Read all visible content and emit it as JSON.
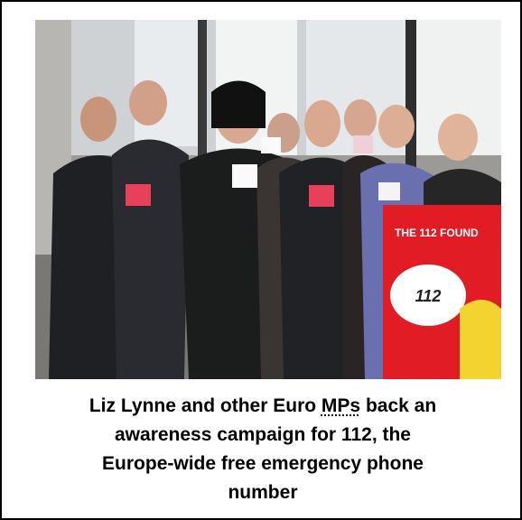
{
  "photo": {
    "sign_title": "THE 112 FOUND",
    "sign_number": "112"
  },
  "caption": {
    "lines": [
      [
        "Liz Lynne and other Euro ",
        "MPs",
        " back an"
      ],
      "awareness campaign for 112, the",
      "Europe-wide free emergency phone",
      "number"
    ]
  }
}
